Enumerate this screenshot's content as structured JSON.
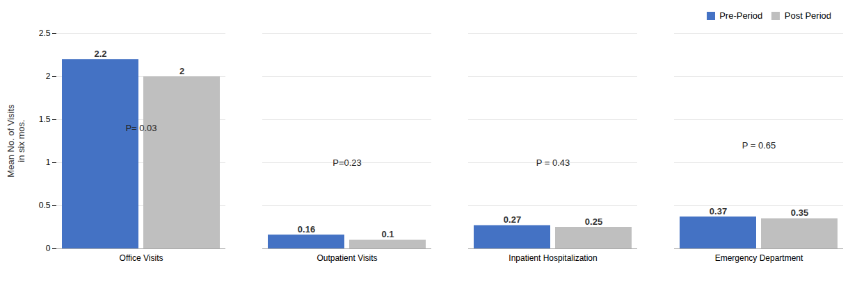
{
  "chart_data": {
    "type": "bar",
    "categories": [
      "Office Visits",
      "Outpatient Visits",
      "Inpatient Hospitalization",
      "Emergency Department"
    ],
    "series": [
      {
        "name": "Pre-Period",
        "color": "#4472C4",
        "values": [
          2.2,
          0.16,
          0.27,
          0.37
        ]
      },
      {
        "name": "Post Period",
        "color": "#BFBFBF",
        "values": [
          2.0,
          0.1,
          0.25,
          0.35
        ]
      }
    ],
    "ylabel": "Mean No. of Visits\nin six mos.",
    "ylim": [
      0,
      2.5
    ],
    "yticks": [
      0,
      0.5,
      1,
      1.5,
      2,
      2.5
    ],
    "grid": true,
    "legend": "upper right",
    "data_labels": true,
    "annotations": [
      {
        "text": "P= 0.03",
        "category": "Office Visits",
        "y": 1.3
      },
      {
        "text": "P=0.23",
        "category": "Outpatient Visits",
        "y": 0.9
      },
      {
        "text": "P = 0.43",
        "category": "Inpatient Hospitalization",
        "y": 0.9
      },
      {
        "text": "P = 0.65",
        "category": "Emergency Department",
        "y": 1.1
      }
    ]
  }
}
